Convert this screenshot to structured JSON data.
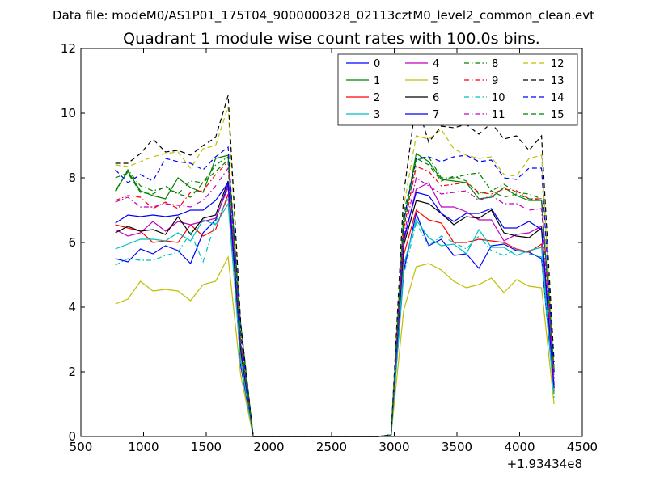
{
  "figure": {
    "suptitle": "Data file: modeM0/AS1P01_175T04_9000000328_02113cztM0_level2_common_clean.evt",
    "offset_text": "+1.93434e8"
  },
  "chart_data": {
    "type": "line",
    "title": "Quadrant 1 module wise count rates with 100.0s bins.",
    "xlabel": "",
    "ylabel": "",
    "xlim": [
      500,
      4500
    ],
    "ylim": [
      0,
      12
    ],
    "x_ticks": [
      500,
      1000,
      1500,
      2000,
      2500,
      3000,
      3500,
      4000,
      4500
    ],
    "y_ticks": [
      0,
      2,
      4,
      6,
      8,
      10,
      12
    ],
    "x_offset": 193434000,
    "grid": false,
    "legend": "top-right",
    "legend_columns": 4,
    "x": [
      775,
      875,
      975,
      1075,
      1175,
      1275,
      1375,
      1475,
      1575,
      1675,
      1775,
      1875,
      1975,
      2075,
      2175,
      2275,
      2375,
      2475,
      2575,
      2675,
      2775,
      2875,
      2975,
      3075,
      3175,
      3275,
      3375,
      3475,
      3575,
      3675,
      3775,
      3875,
      3975,
      4075,
      4175,
      4275
    ],
    "series": [
      {
        "name": "0",
        "color": "#0000ff",
        "dash": "solid",
        "values": [
          5.5,
          5.4,
          5.8,
          5.65,
          5.9,
          5.75,
          5.35,
          6.3,
          6.7,
          7.8,
          2.2,
          0,
          0,
          0,
          0,
          0,
          0,
          0,
          0,
          0,
          0,
          0,
          0.05,
          5.1,
          6.9,
          5.9,
          6.1,
          5.6,
          5.65,
          5.2,
          5.9,
          5.95,
          5.75,
          5.7,
          5.5,
          1.3
        ]
      },
      {
        "name": "1",
        "color": "#008000",
        "dash": "solid",
        "values": [
          7.6,
          8.2,
          7.6,
          7.45,
          7.35,
          8.0,
          7.7,
          7.55,
          8.6,
          8.7,
          3.5,
          0,
          0,
          0,
          0,
          0,
          0,
          0,
          0,
          0,
          0,
          0,
          0.05,
          6.6,
          8.75,
          8.5,
          7.95,
          7.9,
          7.85,
          7.35,
          7.4,
          7.7,
          7.45,
          7.3,
          7.3,
          2.0
        ]
      },
      {
        "name": "2",
        "color": "#ff0000",
        "dash": "solid",
        "values": [
          6.55,
          6.45,
          6.35,
          6.0,
          6.05,
          6.0,
          6.55,
          6.2,
          6.4,
          7.5,
          2.6,
          0,
          0,
          0,
          0,
          0,
          0,
          0,
          0,
          0,
          0,
          0,
          0.05,
          5.6,
          7.0,
          6.7,
          6.6,
          6.0,
          6.0,
          6.1,
          6.05,
          6.0,
          5.8,
          5.7,
          5.95,
          1.4
        ]
      },
      {
        "name": "3",
        "color": "#00bfbf",
        "dash": "solid",
        "values": [
          5.8,
          5.95,
          6.1,
          6.1,
          6.05,
          6.3,
          6.05,
          6.7,
          6.55,
          7.2,
          2.4,
          0,
          0,
          0,
          0,
          0,
          0,
          0,
          0,
          0,
          0,
          0,
          0.05,
          5.3,
          6.7,
          6.15,
          5.9,
          5.95,
          5.65,
          6.4,
          5.85,
          5.85,
          5.6,
          5.75,
          5.85,
          1.3
        ]
      },
      {
        "name": "4",
        "color": "#bf00bf",
        "dash": "solid",
        "values": [
          6.4,
          6.2,
          6.3,
          6.65,
          6.35,
          6.65,
          6.55,
          6.65,
          6.75,
          7.7,
          2.8,
          0,
          0,
          0,
          0,
          0,
          0,
          0,
          0,
          0,
          0,
          0,
          0.05,
          6.0,
          7.65,
          7.85,
          7.1,
          7.1,
          6.95,
          6.7,
          6.7,
          6.05,
          6.25,
          6.3,
          6.5,
          1.6
        ]
      },
      {
        "name": "5",
        "color": "#bfbf00",
        "dash": "solid",
        "values": [
          4.1,
          4.25,
          4.8,
          4.5,
          4.55,
          4.5,
          4.2,
          4.7,
          4.8,
          5.55,
          1.9,
          0,
          0,
          0,
          0,
          0,
          0,
          0,
          0,
          0,
          0,
          0,
          0.05,
          3.9,
          5.25,
          5.35,
          5.15,
          4.8,
          4.6,
          4.7,
          4.9,
          4.45,
          4.85,
          4.65,
          4.6,
          1.0
        ]
      },
      {
        "name": "6",
        "color": "#000000",
        "dash": "solid",
        "values": [
          6.3,
          6.5,
          6.35,
          6.4,
          6.25,
          6.8,
          6.25,
          6.75,
          6.85,
          7.9,
          2.7,
          0,
          0,
          0,
          0,
          0,
          0,
          0,
          0,
          0,
          0,
          0,
          0.05,
          5.9,
          7.3,
          7.2,
          6.9,
          6.55,
          6.8,
          6.75,
          7.0,
          6.3,
          6.2,
          6.15,
          6.45,
          1.5
        ]
      },
      {
        "name": "7",
        "color": "#0000ff",
        "dash": "solid",
        "values": [
          6.6,
          6.85,
          6.8,
          6.85,
          6.8,
          6.85,
          7.0,
          7.0,
          7.3,
          7.85,
          2.8,
          0,
          0,
          0,
          0,
          0,
          0,
          0,
          0,
          0,
          0,
          0,
          0.05,
          6.1,
          7.55,
          7.45,
          6.9,
          6.65,
          6.9,
          6.9,
          7.05,
          6.45,
          6.45,
          6.65,
          6.4,
          1.5
        ]
      },
      {
        "name": "8",
        "color": "#008000",
        "dash": "dashdot",
        "values": [
          7.55,
          8.25,
          7.75,
          7.6,
          7.7,
          7.5,
          7.9,
          7.85,
          8.4,
          8.65,
          3.3,
          0,
          0,
          0,
          0,
          0,
          0,
          0,
          0,
          0,
          0,
          0,
          0.05,
          6.4,
          8.55,
          8.65,
          8.0,
          8.0,
          8.1,
          8.15,
          7.6,
          7.8,
          7.55,
          7.5,
          7.35,
          1.9
        ]
      },
      {
        "name": "9",
        "color": "#ff0000",
        "dash": "dashdot",
        "values": [
          7.3,
          7.45,
          7.4,
          7.05,
          7.25,
          7.05,
          7.55,
          7.6,
          8.1,
          8.5,
          2.9,
          0,
          0,
          0,
          0,
          0,
          0,
          0,
          0,
          0,
          0,
          0,
          0.05,
          6.4,
          8.35,
          8.2,
          7.75,
          7.8,
          7.85,
          7.55,
          7.5,
          7.65,
          7.6,
          7.35,
          7.35,
          1.8
        ]
      },
      {
        "name": "10",
        "color": "#00bfbf",
        "dash": "dashdot",
        "values": [
          5.3,
          5.5,
          5.45,
          5.45,
          5.6,
          5.7,
          6.3,
          5.4,
          6.65,
          7.35,
          2.3,
          0,
          0,
          0,
          0,
          0,
          0,
          0,
          0,
          0,
          0,
          0,
          0.05,
          5.0,
          6.6,
          5.9,
          6.2,
          6.0,
          5.8,
          6.2,
          5.75,
          5.6,
          5.8,
          5.65,
          5.55,
          1.2
        ]
      },
      {
        "name": "11",
        "color": "#bf00bf",
        "dash": "dashdot",
        "values": [
          7.25,
          7.4,
          7.1,
          7.1,
          7.2,
          7.15,
          7.1,
          7.3,
          7.75,
          8.3,
          2.9,
          0,
          0,
          0,
          0,
          0,
          0,
          0,
          0,
          0,
          0,
          0,
          0.05,
          6.2,
          8.0,
          7.75,
          7.5,
          7.55,
          7.6,
          7.3,
          7.45,
          7.2,
          7.2,
          7.0,
          7.05,
          1.7
        ]
      },
      {
        "name": "12",
        "color": "#bfbf00",
        "dash": "dashed",
        "values": [
          8.4,
          8.35,
          8.5,
          8.65,
          8.75,
          8.8,
          8.3,
          8.9,
          9.0,
          10.2,
          3.4,
          0,
          0,
          0,
          0,
          0,
          0,
          0,
          0,
          0,
          0,
          0,
          0.05,
          7.1,
          9.3,
          9.2,
          9.5,
          8.9,
          8.7,
          8.6,
          8.65,
          8.1,
          8.05,
          8.6,
          8.7,
          2.0
        ]
      },
      {
        "name": "13",
        "color": "#000000",
        "dash": "dashed",
        "values": [
          8.45,
          8.45,
          8.75,
          9.2,
          8.8,
          8.85,
          8.7,
          9.0,
          9.25,
          10.55,
          3.5,
          0,
          0,
          0,
          0,
          0,
          0,
          0,
          0,
          0,
          0,
          0,
          0.05,
          7.5,
          10.35,
          9.1,
          9.6,
          9.55,
          9.65,
          9.35,
          9.7,
          9.2,
          9.3,
          8.85,
          9.3,
          2.3
        ]
      },
      {
        "name": "14",
        "color": "#0000ff",
        "dash": "dashed",
        "values": [
          8.25,
          7.85,
          8.1,
          7.9,
          8.6,
          8.5,
          8.45,
          8.25,
          8.65,
          8.95,
          3.2,
          0,
          0,
          0,
          0,
          0,
          0,
          0,
          0,
          0,
          0,
          0,
          0.05,
          6.7,
          8.6,
          8.65,
          8.5,
          8.65,
          8.7,
          8.5,
          8.55,
          8.0,
          7.95,
          8.3,
          8.3,
          2.0
        ]
      },
      {
        "name": "15",
        "color": "#008000",
        "dash": "dashed",
        "values": [
          8.0,
          8.15,
          7.55,
          7.5,
          7.75,
          7.5,
          7.4,
          7.85,
          8.2,
          8.55,
          3.0,
          0,
          0,
          0,
          0,
          0,
          0,
          0,
          0,
          0,
          0,
          0,
          0.05,
          6.9,
          8.6,
          8.4,
          7.9,
          8.05,
          7.9,
          7.5,
          7.6,
          7.4,
          7.5,
          7.35,
          7.3,
          2.1
        ]
      }
    ]
  }
}
